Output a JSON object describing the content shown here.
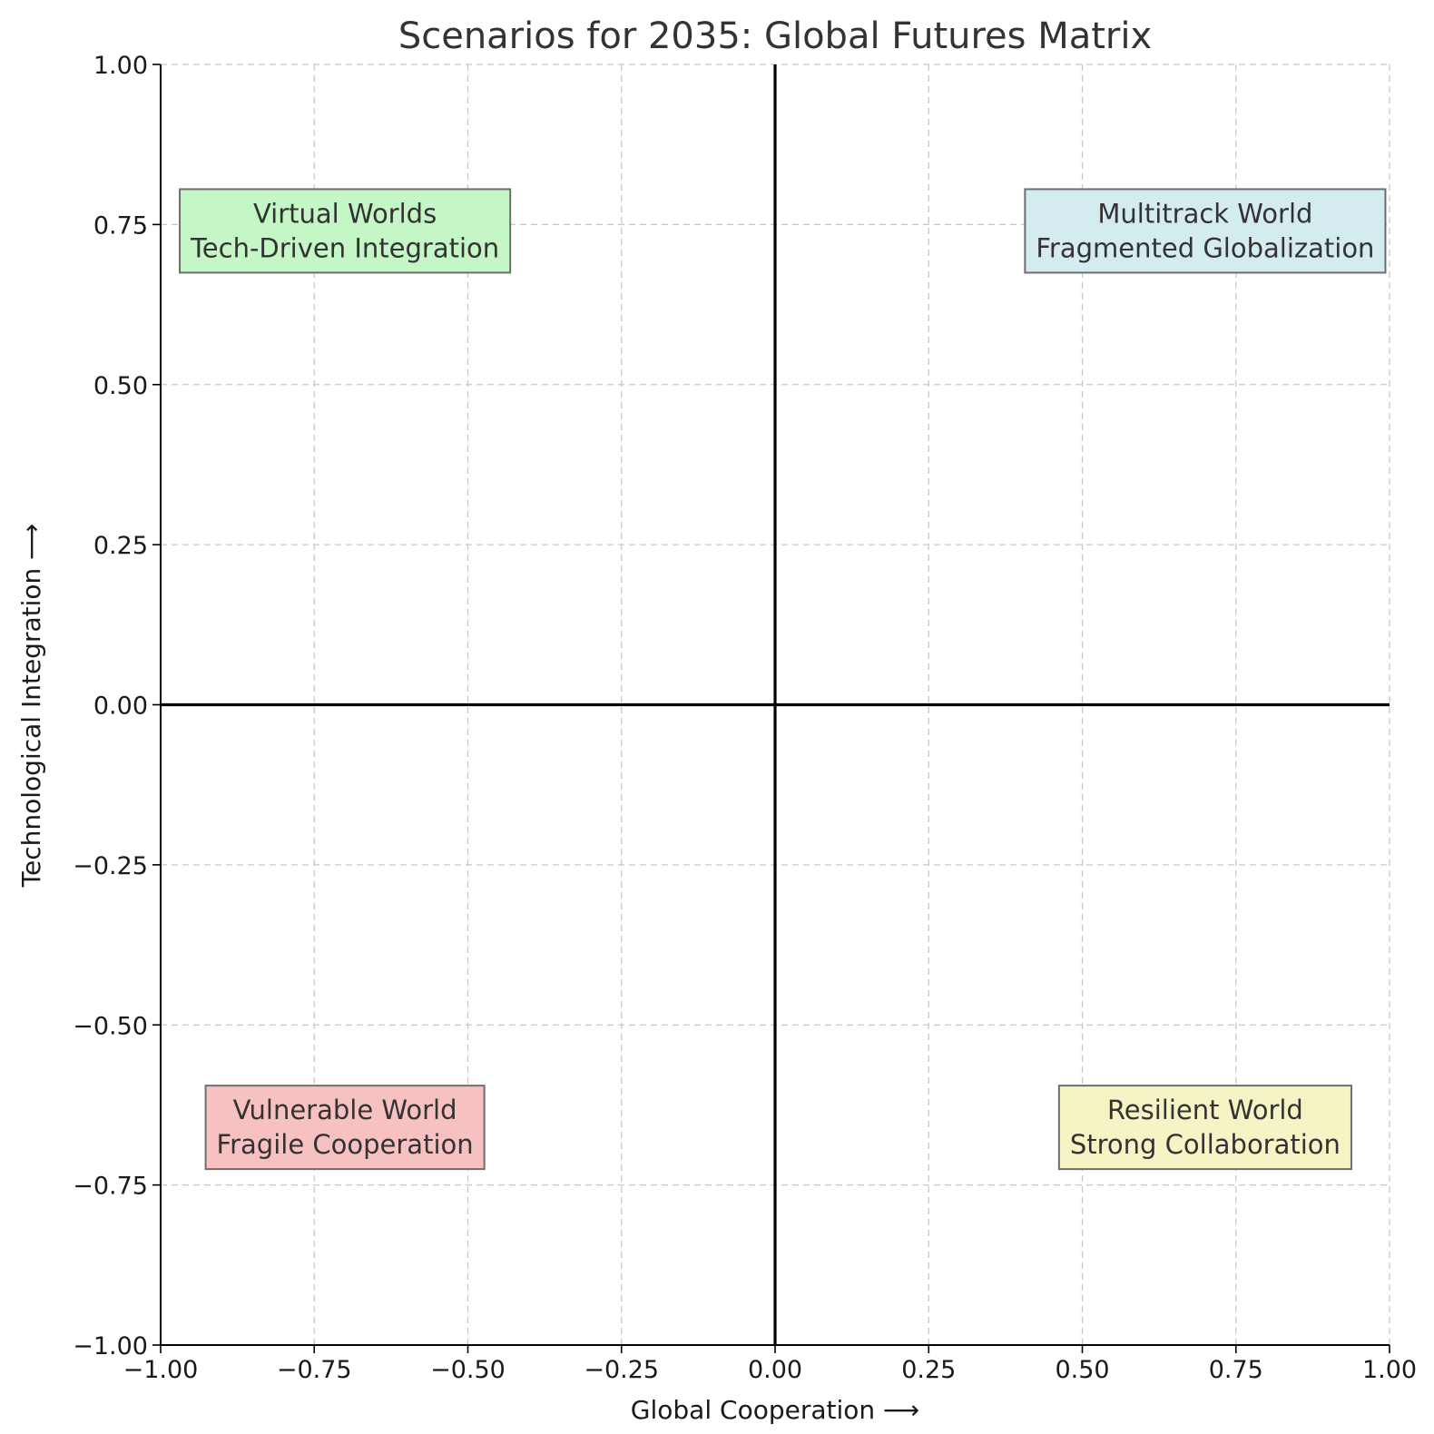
{
  "chart_data": {
    "type": "scatter",
    "title": "Scenarios for 2035: Global Futures Matrix",
    "xlabel": "Global Cooperation  ⟶",
    "ylabel": "Technological Integration  ⟶",
    "xlim": [
      -1.0,
      1.0
    ],
    "ylim": [
      -1.0,
      1.0
    ],
    "x_ticks": [
      -1.0,
      -0.75,
      -0.5,
      -0.25,
      0.0,
      0.25,
      0.5,
      0.75,
      1.0
    ],
    "y_ticks": [
      -1.0,
      -0.75,
      -0.5,
      -0.25,
      0.0,
      0.25,
      0.5,
      0.75,
      1.0
    ],
    "x_tick_labels": [
      "−1.00",
      "−0.75",
      "−0.50",
      "−0.25",
      "0.00",
      "0.25",
      "0.50",
      "0.75",
      "1.00"
    ],
    "y_tick_labels": [
      "−1.00",
      "−0.75",
      "−0.50",
      "−0.25",
      "0.00",
      "0.25",
      "0.50",
      "0.75",
      "1.00"
    ],
    "grid": true,
    "reference_lines": {
      "x": 0,
      "y": 0
    },
    "annotations": [
      {
        "x": -0.7,
        "y": 0.74,
        "line1": "Virtual Worlds",
        "line2": "Tech-Driven Integration",
        "color": "#c4f6c6"
      },
      {
        "x": 0.7,
        "y": 0.74,
        "line1": "Multitrack World",
        "line2": "Fragmented Globalization",
        "color": "#d4ebf0"
      },
      {
        "x": -0.7,
        "y": -0.66,
        "line1": "Vulnerable World",
        "line2": "Fragile Cooperation",
        "color": "#f7c1c1"
      },
      {
        "x": 0.7,
        "y": -0.66,
        "line1": "Resilient World",
        "line2": "Strong Collaboration",
        "color": "#f6f3c4"
      }
    ]
  }
}
